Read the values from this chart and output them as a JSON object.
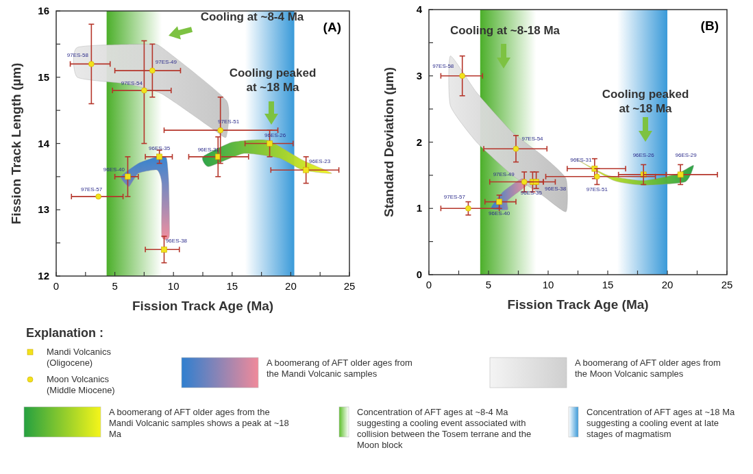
{
  "chart_data": [
    {
      "type": "scatter",
      "xlabel": "Fission Track Age (Ma)",
      "ylabel": "Fission Track Length (µm)",
      "xlim": [
        0,
        25
      ],
      "ylim": [
        12,
        16
      ],
      "xticks": [
        0,
        {
          "value": 2.5,
          "label": null
        },
        5,
        {
          "value": 7.5,
          "label": null
        },
        10,
        {
          "value": 12.5,
          "label": null
        },
        15,
        {
          "value": 17.5,
          "label": null
        },
        20,
        {
          "value": 22.5,
          "label": null
        },
        25
      ],
      "yticks": [
        12,
        {
          "value": 12.5,
          "label": null
        },
        13,
        {
          "value": 13.5,
          "label": null
        },
        14,
        {
          "value": 14.5,
          "label": null
        },
        15,
        {
          "value": 15.5,
          "label": null
        },
        16
      ],
      "marker": "square",
      "legend": "bottom",
      "series": [
        {
          "name": "Mandi Volcanics (Oligocene)",
          "color": "#f2e21c",
          "x": [
            8.8,
            6.1,
            9.2,
            13.8,
            18.2,
            21.3
          ],
          "values": [
            13.8,
            13.5,
            12.4,
            13.8,
            14.0,
            13.6
          ],
          "xerrors": [
            [
              7.6,
              9.9
            ],
            [
              5.0,
              7.0
            ],
            [
              7.6,
              10.5
            ],
            [
              11.3,
              16.4
            ],
            [
              16.1,
              20.2
            ],
            [
              18.3,
              24.1
            ]
          ],
          "errors": [
            [
              13.7,
              13.9
            ],
            [
              13.2,
              13.8
            ],
            [
              12.2,
              12.6
            ],
            [
              13.5,
              14.1
            ],
            [
              13.8,
              14.2
            ],
            [
              13.4,
              13.8
            ]
          ]
        },
        {
          "name": "Moon Volcanics (Middle Miocene)",
          "color": "#f2e21c",
          "marker": "circle",
          "x": [
            3.0,
            8.2,
            7.5,
            14.0,
            3.6
          ],
          "values": [
            15.2,
            15.1,
            14.8,
            14.2,
            13.2
          ],
          "xerrors": [
            [
              1.2,
              4.6
            ],
            [
              5.0,
              10.6
            ],
            [
              4.8,
              9.8
            ],
            [
              9.2,
              18.9
            ],
            [
              1.3,
              5.7
            ]
          ],
          "errors": [
            [
              14.6,
              15.8
            ],
            [
              14.7,
              15.5
            ],
            [
              14.0,
              15.55
            ],
            [
              13.7,
              14.7
            ],
            null
          ]
        }
      ],
      "bands": [
        {
          "axis": "x",
          "from": 4.3,
          "to": 9.0,
          "color": "#4caf2a"
        },
        {
          "axis": "x",
          "from": 16.1,
          "to": 20.3,
          "color": "#3a9ad9"
        }
      ],
      "annotations": [
        "(A)",
        "Cooling at ~8-4 Ma",
        "Cooling peaked at ~18 Ma",
        {
          "text": "96ES-35",
          "x": 8.8,
          "y": 13.8
        },
        {
          "text": "96ES-40",
          "x": 6.1,
          "y": 13.5
        },
        {
          "text": "96ES-38",
          "x": 9.2,
          "y": 12.4
        },
        {
          "text": "96ES-31",
          "x": 13.8,
          "y": 13.8
        },
        {
          "text": "96ES-26",
          "x": 18.2,
          "y": 14.0
        },
        {
          "text": "96ES-23",
          "x": 21.3,
          "y": 13.6
        },
        {
          "text": "97ES-58",
          "x": 3.0,
          "y": 15.2
        },
        {
          "text": "97ES-49",
          "x": 8.2,
          "y": 15.1
        },
        {
          "text": "97ES-54",
          "x": 7.5,
          "y": 14.8
        },
        {
          "text": "97ES-51",
          "x": 14.0,
          "y": 14.2
        },
        {
          "text": "97ES-57",
          "x": 3.6,
          "y": 13.2
        }
      ]
    },
    {
      "type": "scatter",
      "xlabel": "Fission Track Age (Ma)",
      "ylabel": "Standard Deviation (µm)",
      "xlim": [
        0,
        25
      ],
      "ylim": [
        0,
        4
      ],
      "xticks": [
        0,
        {
          "value": 2.5,
          "label": null
        },
        5,
        {
          "value": 7.5,
          "label": null
        },
        10,
        {
          "value": 12.5,
          "label": null
        },
        15,
        {
          "value": 17.5,
          "label": null
        },
        20,
        {
          "value": 22.5,
          "label": null
        },
        25
      ],
      "yticks": [
        0,
        {
          "value": 0.5,
          "label": null
        },
        1,
        {
          "value": 1.5,
          "label": null
        },
        2,
        {
          "value": 2.5,
          "label": null
        },
        3,
        {
          "value": 3.5,
          "label": null
        },
        4
      ],
      "marker": "square",
      "series": [
        {
          "color": "#f2e21c",
          "x": [
            8.7,
            5.9,
            9.0,
            13.9,
            18.0,
            21.1
          ],
          "values": [
            1.4,
            1.1,
            1.4,
            1.6,
            1.51,
            1.51
          ],
          "xerrors": [
            [
              7.9,
              9.6
            ],
            [
              4.7,
              7.3
            ],
            [
              8.0,
              10.6
            ],
            [
              11.6,
              16.5
            ],
            [
              15.9,
              19.9
            ],
            [
              18.0,
              24.2
            ]
          ],
          "errors": [
            [
              1.25,
              1.55
            ],
            [
              1.0,
              1.2
            ],
            [
              1.3,
              1.55
            ],
            [
              1.45,
              1.75
            ],
            [
              1.36,
              1.66
            ],
            [
              1.36,
              1.66
            ]
          ]
        },
        {
          "color": "#f2e21c",
          "marker": "circle",
          "x": [
            2.8,
            7.3,
            8.0,
            14.1,
            3.3
          ],
          "values": [
            3.0,
            1.9,
            1.4,
            1.48,
            1.0
          ],
          "xerrors": [
            [
              1.0,
              4.5
            ],
            [
              4.6,
              9.9
            ],
            [
              5.1,
              9.6
            ],
            [
              9.8,
              19.0
            ],
            [
              1.0,
              5.9
            ]
          ],
          "errors": [
            [
              2.7,
              3.3
            ],
            [
              1.7,
              2.1
            ],
            [
              1.25,
              1.55
            ],
            [
              1.36,
              1.6
            ],
            [
              0.9,
              1.1
            ]
          ]
        }
      ],
      "bands": [
        {
          "axis": "x",
          "from": 4.3,
          "to": 9.0,
          "color": "#4caf2a"
        },
        {
          "axis": "x",
          "from": 15.8,
          "to": 20.0,
          "color": "#3a9ad9"
        }
      ],
      "annotations": [
        "(B)",
        "Cooling at ~8-18 Ma",
        "Cooling peaked at ~18 Ma",
        {
          "text": "96ES-35",
          "x": 8.7,
          "y": 1.4
        },
        {
          "text": "96ES-40",
          "x": 5.9,
          "y": 1.1
        },
        {
          "text": "96ES-38",
          "x": 9.0,
          "y": 1.4
        },
        {
          "text": "96ES-31",
          "x": 13.9,
          "y": 1.6
        },
        {
          "text": "96ES-26",
          "x": 18.0,
          "y": 1.51
        },
        {
          "text": "96ES-29",
          "x": 21.1,
          "y": 1.51
        },
        {
          "text": "97ES-58",
          "x": 2.8,
          "y": 3.0
        },
        {
          "text": "97ES-54",
          "x": 7.3,
          "y": 1.9
        },
        {
          "text": "97ES-49",
          "x": 8.0,
          "y": 1.4
        },
        {
          "text": "97ES-51",
          "x": 14.1,
          "y": 1.48
        },
        {
          "text": "97ES-57",
          "x": 3.3,
          "y": 1.0
        }
      ]
    },
    {
      "type": "other",
      "title": "Explanation :",
      "annotations": [
        "A boomerang of AFT older ages from the Mandi Volcanic samples",
        "A boomerang of AFT older ages from the Moon Volcanic samples",
        "A boomerang of AFT older ages from the Mandi Volcanic samples shows a peak at ~18 Ma",
        "Concentration of AFT ages at ~8-4 Ma suggesting a cooling event associated with collision between the Tosem terrane and the Moon block",
        "Concentration of AFT ages at ~18 Ma suggesting a cooling event at late stages of magmatism"
      ]
    }
  ]
}
